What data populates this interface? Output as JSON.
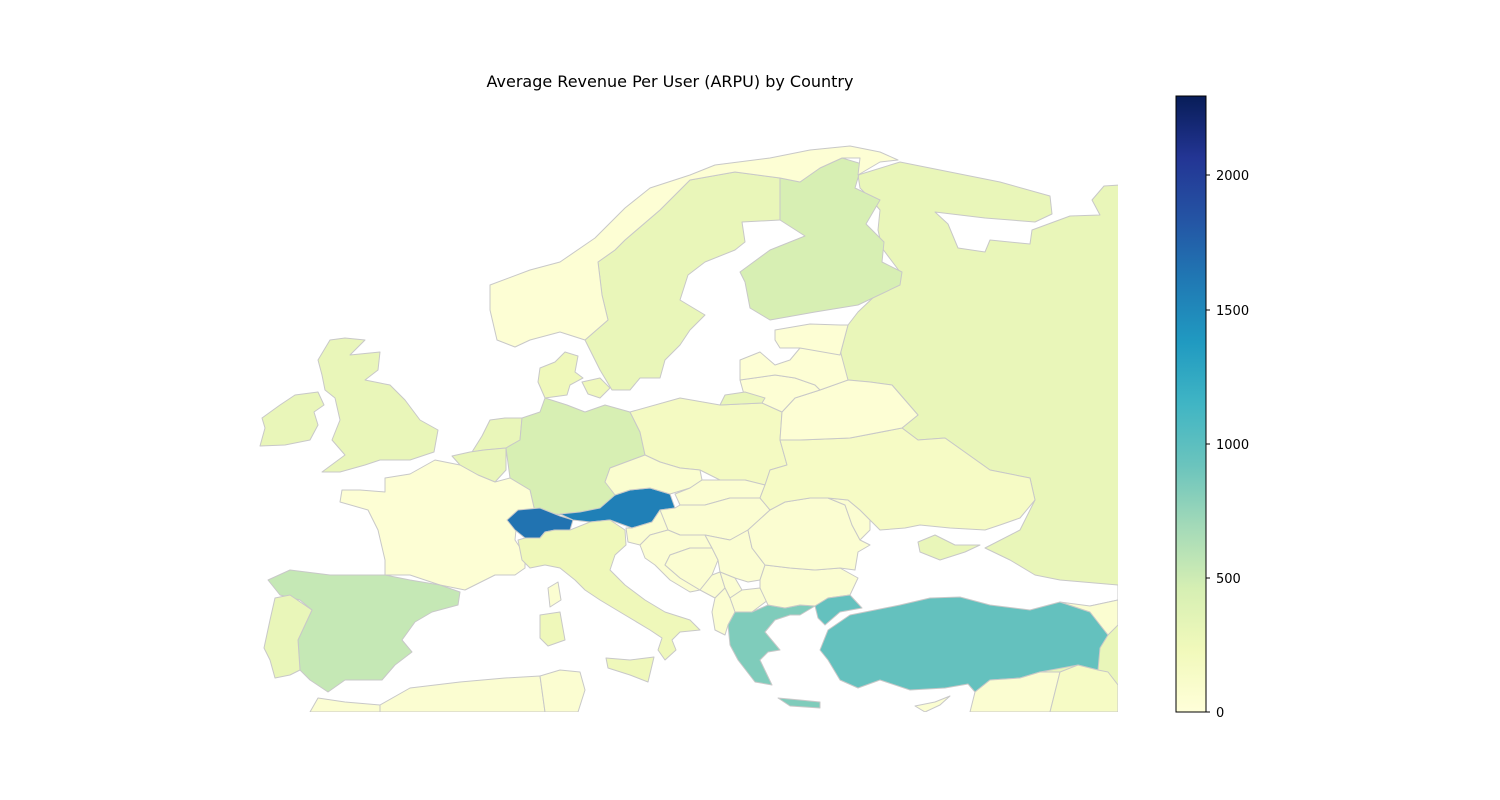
{
  "title": "Average Revenue Per User (ARPU) by Country",
  "colorbar": {
    "min": 0,
    "max": 2300,
    "ticks": [
      "0",
      "500",
      "1000",
      "1500",
      "2000"
    ],
    "scale": "YlGnBu"
  },
  "countries": [
    {
      "id": "norway",
      "value": 40
    },
    {
      "id": "sweden",
      "value": 300
    },
    {
      "id": "finland",
      "value": 450
    },
    {
      "id": "russia",
      "value": 300
    },
    {
      "id": "ireland",
      "value": 300
    },
    {
      "id": "united-kingdom",
      "value": 300
    },
    {
      "id": "denmark",
      "value": 250
    },
    {
      "id": "gotland",
      "value": 250
    },
    {
      "id": "netherlands",
      "value": 300
    },
    {
      "id": "belgium",
      "value": 300
    },
    {
      "id": "germany",
      "value": 450
    },
    {
      "id": "france",
      "value": 40
    },
    {
      "id": "spain",
      "value": 540
    },
    {
      "id": "portugal",
      "value": 300
    },
    {
      "id": "switzerland",
      "value": 1650
    },
    {
      "id": "austria",
      "value": 1560
    },
    {
      "id": "italy",
      "value": 250
    },
    {
      "id": "sicily",
      "value": 250
    },
    {
      "id": "sardinia",
      "value": 250
    },
    {
      "id": "corsica",
      "value": 60
    },
    {
      "id": "poland",
      "value": 180
    },
    {
      "id": "czechia",
      "value": 80
    },
    {
      "id": "slovakia",
      "value": 60
    },
    {
      "id": "hungary",
      "value": 60
    },
    {
      "id": "slovenia",
      "value": 60
    },
    {
      "id": "croatia",
      "value": 60
    },
    {
      "id": "bosnia",
      "value": 60
    },
    {
      "id": "serbia",
      "value": 60
    },
    {
      "id": "montenegro",
      "value": 60
    },
    {
      "id": "kosovo",
      "value": 60
    },
    {
      "id": "north-macedonia",
      "value": 60
    },
    {
      "id": "albania",
      "value": 60
    },
    {
      "id": "greece",
      "value": 840
    },
    {
      "id": "crete",
      "value": 840
    },
    {
      "id": "bulgaria",
      "value": 60
    },
    {
      "id": "romania",
      "value": 60
    },
    {
      "id": "moldova",
      "value": 60
    },
    {
      "id": "ukraine",
      "value": 150
    },
    {
      "id": "crimea",
      "value": 300
    },
    {
      "id": "belarus",
      "value": 40
    },
    {
      "id": "lithuania",
      "value": 40
    },
    {
      "id": "latvia",
      "value": 40
    },
    {
      "id": "estonia",
      "value": 40
    },
    {
      "id": "kaliningrad",
      "value": 300
    },
    {
      "id": "turkey-europe",
      "value": 960
    },
    {
      "id": "turkey",
      "value": 960
    },
    {
      "id": "cyprus",
      "value": 60
    },
    {
      "id": "georgia",
      "value": 60
    },
    {
      "id": "syria",
      "value": 60
    },
    {
      "id": "iraq",
      "value": 150
    },
    {
      "id": "algeria",
      "value": 60
    },
    {
      "id": "tunisia",
      "value": 60
    },
    {
      "id": "morocco",
      "value": 60
    }
  ]
}
